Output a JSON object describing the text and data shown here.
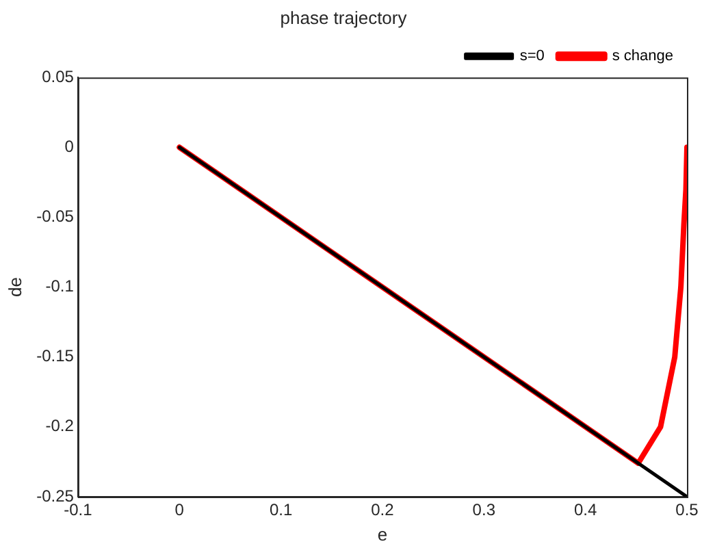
{
  "chart_data": {
    "type": "line",
    "title": "phase trajectory",
    "xlabel": "e",
    "ylabel": "de",
    "xlim": [
      -0.1,
      0.5
    ],
    "xticks": [
      -0.1,
      0,
      0.1,
      0.2,
      0.3,
      0.4,
      0.5
    ],
    "ylim": [
      -0.25,
      0.05
    ],
    "yticks": [
      -0.25,
      -0.2,
      -0.15,
      -0.1,
      -0.05,
      0,
      0.05
    ],
    "grid": false,
    "legend": "top right",
    "marker": "none",
    "line_style": "solid",
    "series": [
      {
        "name": "s change",
        "color": "#ff0000",
        "x": [
          0.5,
          0.499,
          0.497,
          0.494,
          0.488,
          0.474,
          0.452,
          0.3,
          0.15,
          0
        ],
        "values": [
          0,
          -0.03,
          -0.055,
          -0.1,
          -0.15,
          -0.2,
          -0.226,
          -0.15,
          -0.075,
          0
        ]
      },
      {
        "name": "s=0",
        "color": "#000000",
        "x": [
          0,
          0.5
        ],
        "values": [
          0,
          -0.25
        ]
      }
    ]
  }
}
